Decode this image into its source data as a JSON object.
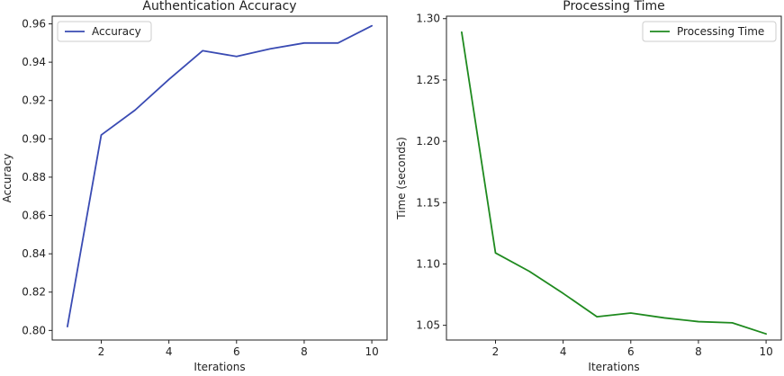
{
  "chart_data": [
    {
      "type": "line",
      "title": "Authentication Accuracy",
      "xlabel": "Iterations",
      "ylabel": "Accuracy",
      "x": [
        1,
        2,
        3,
        4,
        5,
        6,
        7,
        8,
        9,
        10
      ],
      "series": [
        {
          "name": "Accuracy",
          "color": "#3a4bb3",
          "values": [
            0.802,
            0.902,
            0.915,
            0.931,
            0.946,
            0.943,
            0.947,
            0.95,
            0.95,
            0.959
          ]
        }
      ],
      "xlim": [
        0.55,
        10.45
      ],
      "ylim": [
        0.795,
        0.964
      ],
      "xticks": [
        2,
        4,
        6,
        8,
        10
      ],
      "xtick_labels": [
        "2",
        "4",
        "6",
        "8",
        "10"
      ],
      "yticks": [
        0.8,
        0.82,
        0.84,
        0.86,
        0.88,
        0.9,
        0.92,
        0.94,
        0.96
      ],
      "ytick_labels": [
        "0.80",
        "0.82",
        "0.84",
        "0.86",
        "0.88",
        "0.90",
        "0.92",
        "0.94",
        "0.96"
      ],
      "grid": false,
      "legend_position": "top-left"
    },
    {
      "type": "line",
      "title": "Processing Time",
      "xlabel": "Iterations",
      "ylabel": "Time (seconds)",
      "x": [
        1,
        2,
        3,
        4,
        5,
        6,
        7,
        8,
        9,
        10
      ],
      "series": [
        {
          "name": "Processing Time",
          "color": "#1f8a1f",
          "values": [
            1.289,
            1.109,
            1.094,
            1.076,
            1.057,
            1.06,
            1.056,
            1.053,
            1.052,
            1.043
          ]
        }
      ],
      "xlim": [
        0.55,
        10.45
      ],
      "ylim": [
        1.038,
        1.302
      ],
      "xticks": [
        2,
        4,
        6,
        8,
        10
      ],
      "xtick_labels": [
        "2",
        "4",
        "6",
        "8",
        "10"
      ],
      "yticks": [
        1.05,
        1.1,
        1.15,
        1.2,
        1.25,
        1.3
      ],
      "ytick_labels": [
        "1.05",
        "1.10",
        "1.15",
        "1.20",
        "1.25",
        "1.30"
      ],
      "grid": false,
      "legend_position": "top-right"
    }
  ]
}
